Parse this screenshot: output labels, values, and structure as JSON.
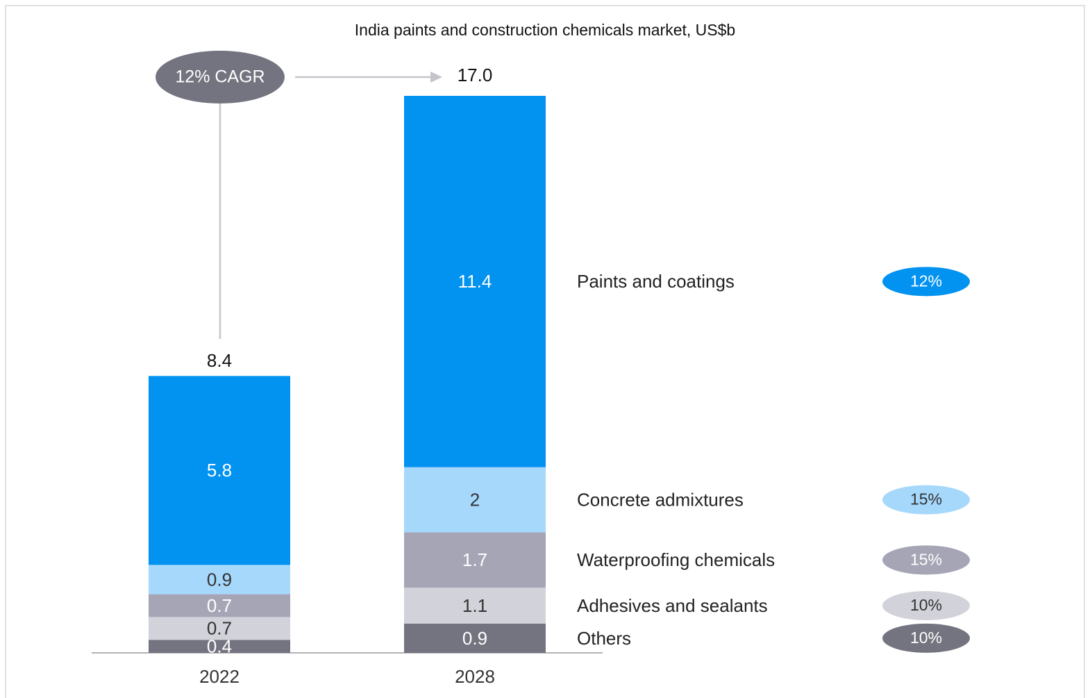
{
  "chart_data": {
    "type": "stacked-bar",
    "title": "India paints and construction chemicals market, US$b",
    "categories": [
      "2022",
      "2028"
    ],
    "series": [
      {
        "name": "Others",
        "color": "#747480",
        "values": [
          0.4,
          0.9
        ],
        "cagr": 10,
        "cagr_label": "10%"
      },
      {
        "name": "Adhesives and sealants",
        "color": "#d2d2da",
        "values": [
          0.7,
          1.1
        ],
        "cagr": 10,
        "cagr_label": "10%"
      },
      {
        "name": "Waterproofing chemicals",
        "color": "#a5a5b6",
        "values": [
          0.7,
          1.7
        ],
        "cagr": 15,
        "cagr_label": "15%"
      },
      {
        "name": "Concrete admixtures",
        "color": "#a6d8fc",
        "values": [
          0.9,
          2
        ],
        "cagr": 15,
        "cagr_label": "15%"
      },
      {
        "name": "Paints and coatings",
        "color": "#0292f0",
        "values": [
          5.8,
          11.4
        ],
        "cagr": 12,
        "cagr_label": "12%"
      }
    ],
    "totals": [
      8.4,
      17
    ],
    "total_labels": [
      "8.4",
      "17.0"
    ],
    "annotation": "12% CAGR",
    "ylim": [
      0,
      17.1
    ]
  }
}
